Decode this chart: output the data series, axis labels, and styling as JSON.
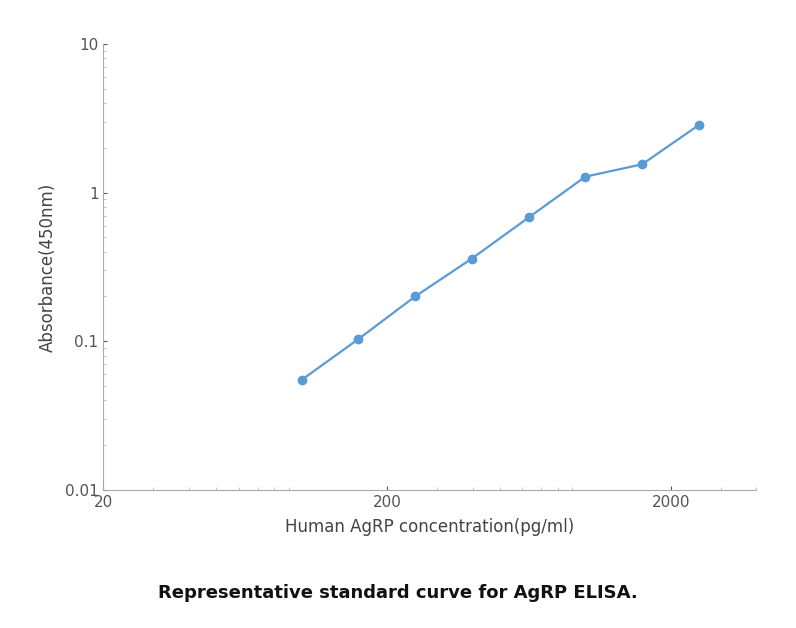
{
  "x_values": [
    100,
    158,
    251,
    398,
    631,
    1000,
    1585,
    2512
  ],
  "y_values": [
    0.055,
    0.103,
    0.2,
    0.36,
    0.68,
    1.28,
    1.55,
    2.85
  ],
  "line_color": "#5B9BD5",
  "marker_color": "#5B9BD5",
  "marker_style": "o",
  "marker_size": 6,
  "line_width": 1.6,
  "xlabel": "Human AgRP concentration(pg/ml)",
  "ylabel": "Absorbance(450nm)",
  "xlim": [
    20,
    4000
  ],
  "ylim": [
    0.01,
    10
  ],
  "x_ticks": [
    20,
    200,
    2000
  ],
  "x_tick_labels": [
    "20",
    "200",
    "2000"
  ],
  "y_ticks": [
    0.01,
    0.1,
    1,
    10
  ],
  "y_tick_labels": [
    "0.01",
    "0.1",
    "1",
    "10"
  ],
  "caption": "Representative standard curve for AgRP ELISA.",
  "background_color": "#ffffff",
  "axis_color": "#aaaaaa",
  "tick_color": "#555555",
  "label_fontsize": 12,
  "tick_fontsize": 11,
  "caption_fontsize": 13
}
